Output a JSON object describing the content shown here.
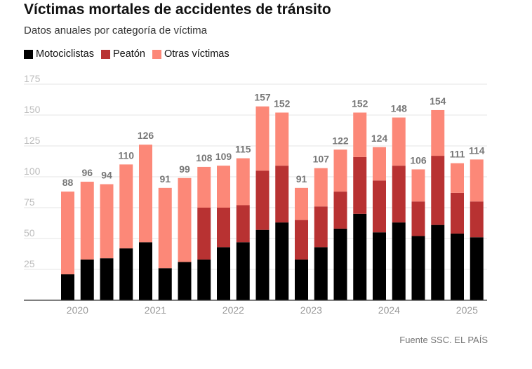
{
  "colors": {
    "motociclistas": "#000000",
    "peaton": "#b83232",
    "otras": "#fc8878",
    "grid": "#e6e6e6",
    "axis": "#333333"
  },
  "chart_data": {
    "type": "bar",
    "stacked": true,
    "title": "Víctimas mortales de accidentes de tránsito",
    "subtitle": "Datos anuales por categoría de víctima",
    "source": "Fuente SSC. EL PAÍS",
    "legend_position": "top-left",
    "grid": true,
    "ylim": [
      0,
      175
    ],
    "yticks": [
      25,
      50,
      75,
      100,
      125,
      150,
      175
    ],
    "x_labels": [
      "2020",
      "2021",
      "2022",
      "2023",
      "2024",
      "2025"
    ],
    "x_label_positions": [
      0.5,
      4.5,
      8.5,
      12.5,
      16.5,
      20.5
    ],
    "series": [
      {
        "name": "Motociclistas",
        "values": [
          21,
          33,
          34,
          42,
          47,
          26,
          31,
          33,
          43,
          47,
          57,
          63,
          33,
          43,
          58,
          70,
          55,
          63,
          52,
          61,
          54,
          51
        ]
      },
      {
        "name": "Peatón",
        "values": [
          0,
          0,
          0,
          0,
          0,
          0,
          0,
          42,
          32,
          30,
          48,
          46,
          32,
          33,
          30,
          46,
          42,
          46,
          28,
          56,
          33,
          29
        ]
      },
      {
        "name": "Otras víctimas",
        "values": [
          67,
          63,
          60,
          68,
          79,
          65,
          68,
          33,
          34,
          38,
          52,
          43,
          26,
          31,
          34,
          36,
          27,
          39,
          26,
          37,
          24,
          34
        ]
      }
    ],
    "totals": [
      88,
      96,
      94,
      110,
      126,
      91,
      99,
      108,
      109,
      115,
      157,
      152,
      91,
      107,
      122,
      152,
      124,
      148,
      106,
      154,
      111,
      114
    ]
  }
}
